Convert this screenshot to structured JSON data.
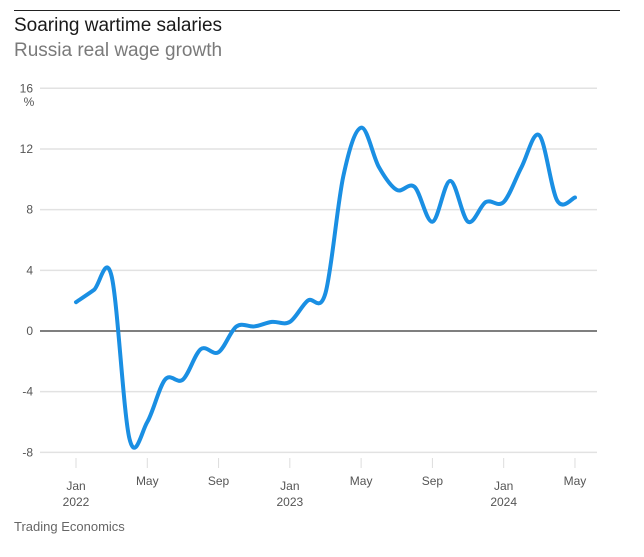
{
  "header": {
    "title": "Soaring wartime salaries",
    "subtitle": "Russia real wage growth"
  },
  "source": "Trading Economics",
  "chart_data": {
    "type": "line",
    "title": "Soaring wartime salaries",
    "subtitle": "Russia real wage growth",
    "xlabel": "",
    "ylabel": "%",
    "ylim": [
      -8,
      16
    ],
    "yticks": [
      16,
      12,
      8,
      4,
      0,
      -4,
      -8
    ],
    "grid": true,
    "line_color": "#1a8fe3",
    "xticks": [
      {
        "month": "2022-01",
        "label": "Jan",
        "year": "2022"
      },
      {
        "month": "2022-05",
        "label": "May",
        "year": ""
      },
      {
        "month": "2022-09",
        "label": "Sep",
        "year": ""
      },
      {
        "month": "2023-01",
        "label": "Jan",
        "year": "2023"
      },
      {
        "month": "2023-05",
        "label": "May",
        "year": ""
      },
      {
        "month": "2023-09",
        "label": "Sep",
        "year": ""
      },
      {
        "month": "2024-01",
        "label": "Jan",
        "year": "2024"
      },
      {
        "month": "2024-05",
        "label": "May",
        "year": ""
      }
    ],
    "series": [
      {
        "x": [
          "2022-01",
          "2022-02",
          "2022-03",
          "2022-04",
          "2022-05",
          "2022-06",
          "2022-07",
          "2022-08",
          "2022-09",
          "2022-10",
          "2022-11",
          "2022-12",
          "2023-01",
          "2023-02",
          "2023-03",
          "2023-04",
          "2023-05",
          "2023-06",
          "2023-07",
          "2023-08",
          "2023-09",
          "2023-10",
          "2023-11",
          "2023-12",
          "2024-01",
          "2024-02",
          "2024-03",
          "2024-04",
          "2024-05"
        ],
        "values": [
          1.9,
          2.7,
          3.6,
          -7.1,
          -6.0,
          -3.2,
          -3.2,
          -1.2,
          -1.4,
          0.3,
          0.3,
          0.6,
          0.6,
          2.0,
          2.5,
          10.2,
          13.4,
          10.8,
          9.3,
          9.5,
          7.2,
          9.9,
          7.2,
          8.5,
          8.5,
          10.8,
          12.9,
          8.6,
          8.8
        ]
      }
    ]
  }
}
